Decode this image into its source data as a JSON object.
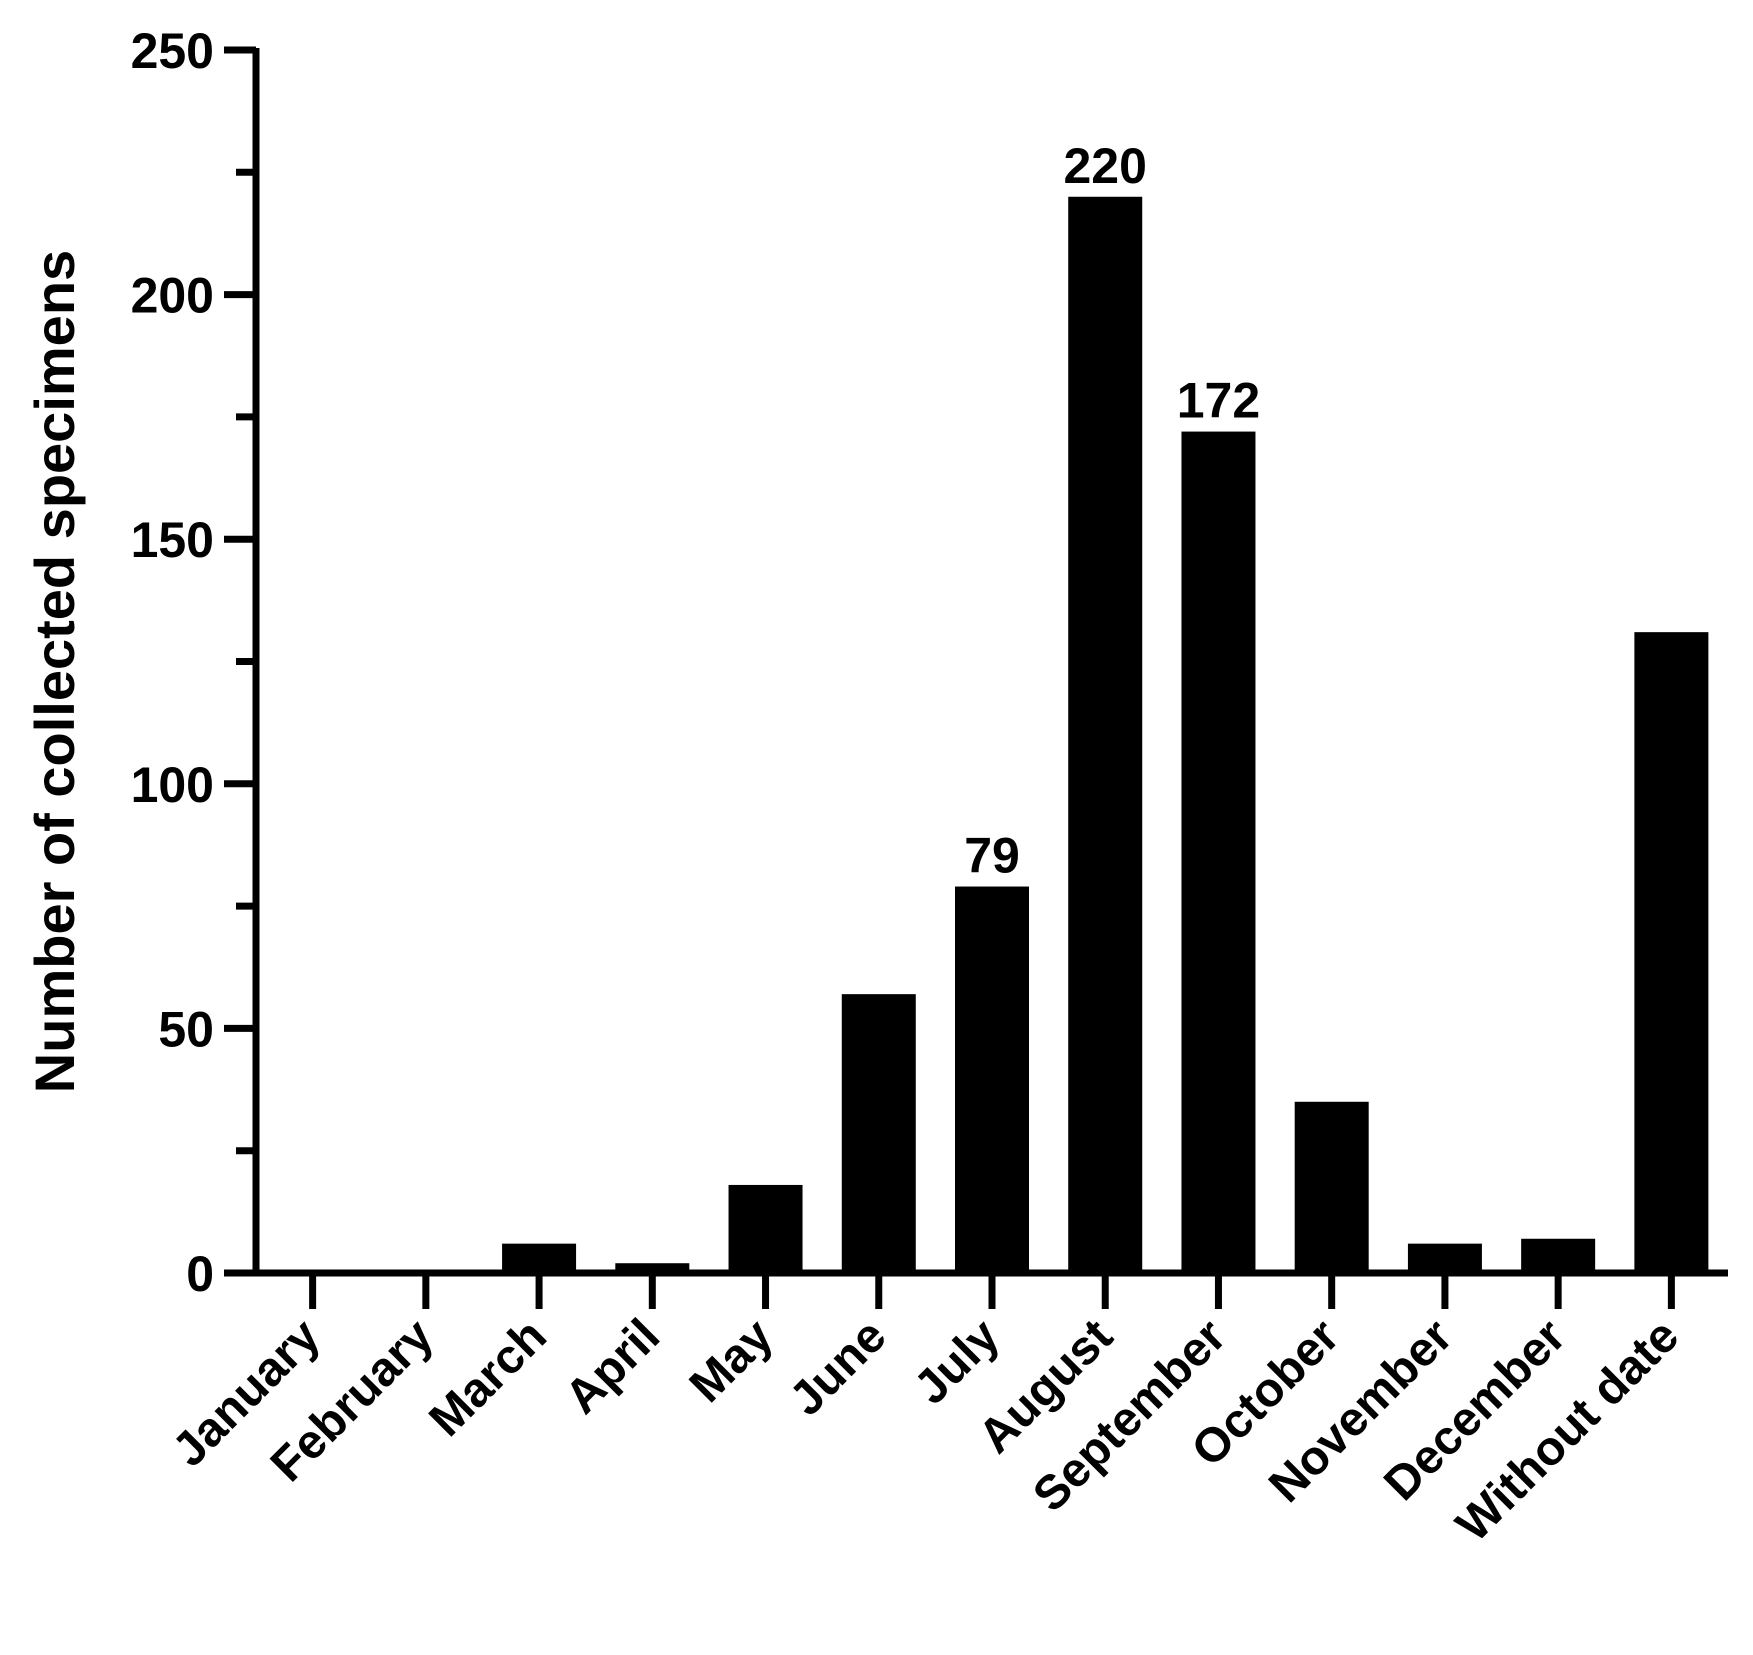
{
  "chart_data": {
    "type": "bar",
    "title": "",
    "xlabel": "",
    "ylabel": "Number of collected specimens",
    "ylim": [
      0,
      250
    ],
    "yticks": [
      0,
      50,
      100,
      150,
      200,
      250
    ],
    "grid": false,
    "legend": "none",
    "categories": [
      "January",
      "February",
      "March",
      "April",
      "May",
      "June",
      "July",
      "August",
      "September",
      "October",
      "November",
      "December",
      "Without date"
    ],
    "values": [
      0,
      0,
      6,
      2,
      18,
      57,
      79,
      220,
      172,
      35,
      6,
      7,
      131
    ],
    "data_labels": [
      {
        "category": "July",
        "text": "79"
      },
      {
        "category": "August",
        "text": "220"
      },
      {
        "category": "September",
        "text": "172"
      }
    ],
    "colors": {
      "bar": "#000000",
      "axis": "#000000",
      "background": "#ffffff"
    }
  }
}
